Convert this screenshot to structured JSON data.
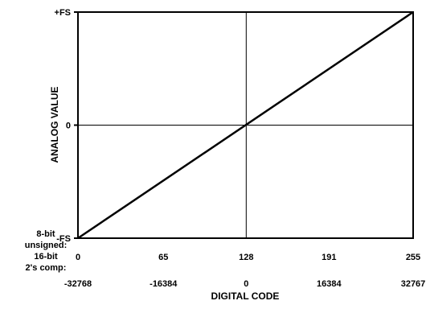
{
  "chart_data": {
    "type": "line",
    "title": "",
    "xlabel": "DIGITAL CODE",
    "ylabel": "ANALOG VALUE",
    "xlim": [
      0,
      255
    ],
    "ylim": [
      -1,
      1
    ],
    "grid": "center-lines",
    "y_ticks": [
      {
        "value": 1,
        "label": "+FS"
      },
      {
        "value": 0,
        "label": "0"
      },
      {
        "value": -1,
        "label": "-FS"
      }
    ],
    "x_row_labels": {
      "unsigned_8bit": [
        "8-bit",
        "unsigned:"
      ],
      "twos_comp_16bit": [
        "16-bit",
        "2's comp:"
      ]
    },
    "x_ticks_8bit_unsigned": [
      {
        "value": 0,
        "label": "0"
      },
      {
        "value": 65,
        "label": "65"
      },
      {
        "value": 128,
        "label": "128"
      },
      {
        "value": 191,
        "label": "191"
      },
      {
        "value": 255,
        "label": "255"
      }
    ],
    "x_ticks_16bit_twos_comp": [
      {
        "value": 0,
        "label": "-32768"
      },
      {
        "value": 65,
        "label": "-16384"
      },
      {
        "value": 128,
        "label": "0"
      },
      {
        "value": 191,
        "label": "16384"
      },
      {
        "value": 255,
        "label": "32767"
      }
    ],
    "series": [
      {
        "x": [
          0,
          255
        ],
        "y": [
          -1,
          1
        ]
      }
    ]
  }
}
